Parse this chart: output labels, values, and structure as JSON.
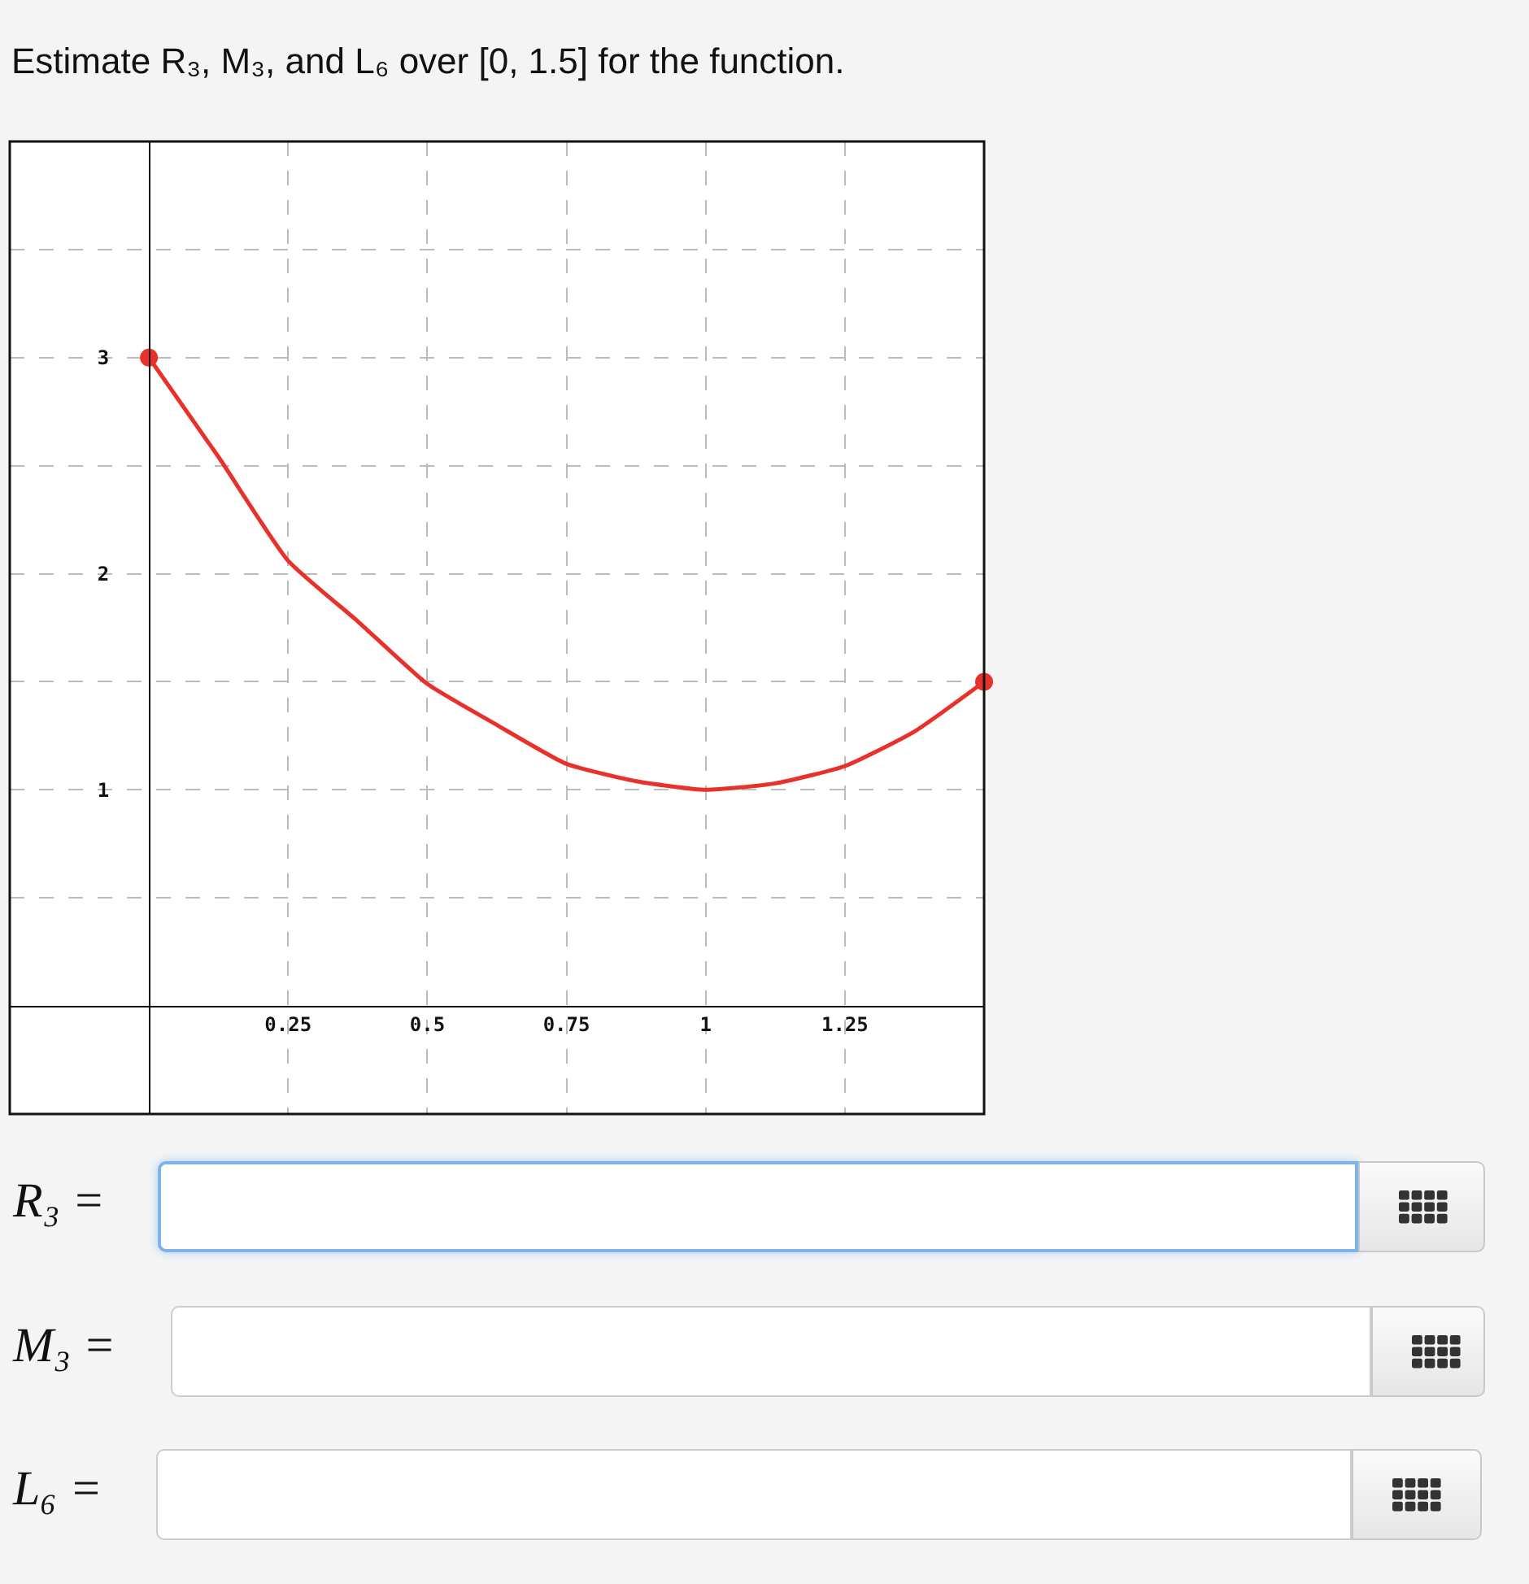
{
  "chart_data": {
    "type": "line",
    "title": "Estimate R₃, M₃, and L₆ over [0, 1.5] for the function.",
    "x": [
      0,
      0.125,
      0.25,
      0.375,
      0.5,
      0.625,
      0.75,
      0.875,
      1,
      1.125,
      1.25,
      1.375,
      1.5
    ],
    "series": [
      {
        "color": "#e8312a",
        "values": [
          3,
          2.54,
          2.06,
          1.78,
          1.49,
          1.3,
          1.12,
          1.04,
          1.0,
          1.03,
          1.11,
          1.27,
          1.5
        ]
      },
      {
        "type": "scatter",
        "marker": "circle",
        "color": "#e8312a",
        "x": [
          0,
          1.5
        ],
        "values": [
          3,
          1.5
        ]
      }
    ],
    "xlim": [
      -0.25,
      1.5
    ],
    "ylim": [
      -0.5,
      4
    ],
    "xticks": [
      0.25,
      0.5,
      0.75,
      1,
      1.25
    ],
    "yticks": [
      {
        "value": 0.5,
        "label": null
      },
      1,
      {
        "value": 1.5,
        "label": null
      },
      2,
      {
        "value": 2.5,
        "label": null
      },
      3,
      {
        "value": 3.5,
        "label": null
      }
    ],
    "grid": true,
    "line_style": "solid",
    "annotations": [
      "R₃ =",
      "M₃ =",
      "L₆ ="
    ]
  }
}
